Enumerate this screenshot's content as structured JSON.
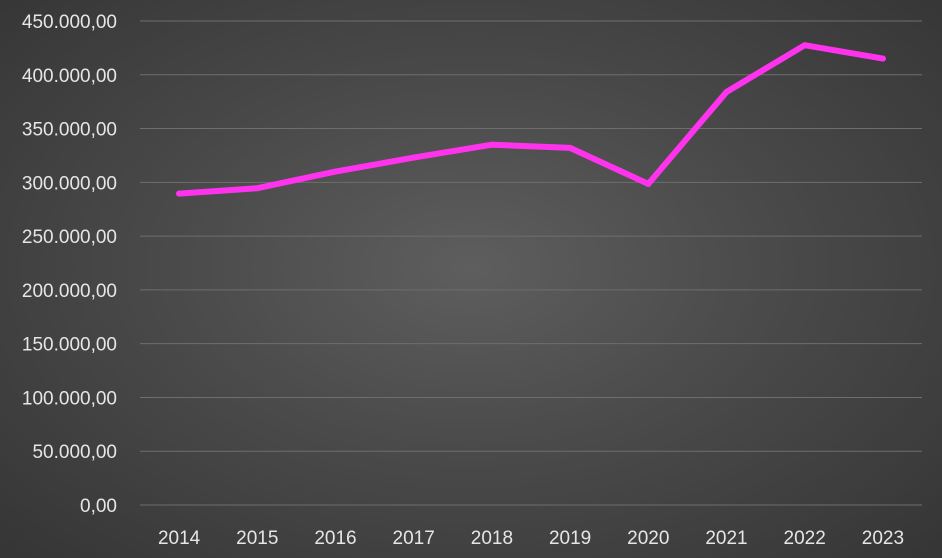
{
  "chart_data": {
    "type": "line",
    "title": "",
    "xlabel": "",
    "ylabel": "",
    "categories": [
      "2014",
      "2015",
      "2016",
      "2017",
      "2018",
      "2019",
      "2020",
      "2021",
      "2022",
      "2023"
    ],
    "series": [
      {
        "values": [
          289500,
          294500,
          310000,
          323000,
          335000,
          332000,
          298500,
          384000,
          427500,
          415000
        ],
        "color": "#ff33ee"
      }
    ],
    "ylim": [
      0,
      450000
    ],
    "y_ticks": [
      "0,00",
      "50.000,00",
      "100.000,00",
      "150.000,00",
      "200.000,00",
      "250.000,00",
      "300.000,00",
      "350.000,00",
      "400.000,00",
      "450.000,00"
    ],
    "grid": true,
    "legend": "none"
  }
}
